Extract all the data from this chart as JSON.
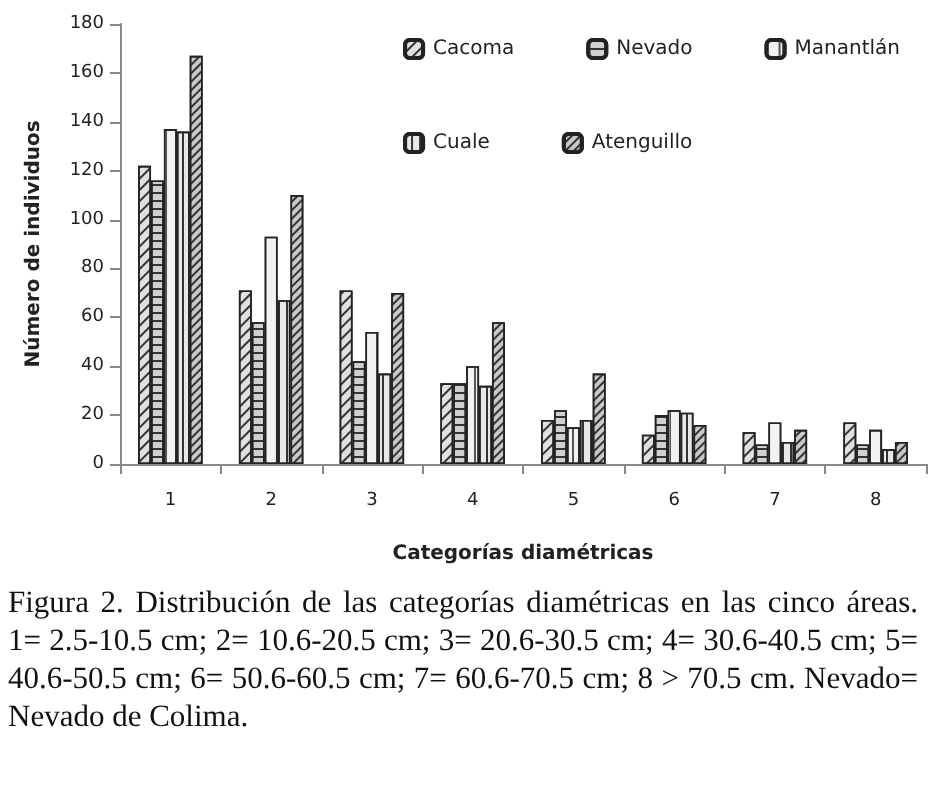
{
  "chart_data": {
    "type": "bar",
    "xlabel": "Categorías diamétricas",
    "ylabel": "Número de individuos",
    "categories": [
      "1",
      "2",
      "3",
      "4",
      "5",
      "6",
      "7",
      "8"
    ],
    "series": [
      {
        "name": "Cacoma",
        "color": "#e0e0e0",
        "values": [
          122,
          71,
          71,
          33,
          18,
          12,
          13,
          17
        ]
      },
      {
        "name": "Nevado",
        "color": "#d0d0d0",
        "values": [
          116,
          58,
          42,
          33,
          22,
          20,
          8,
          8
        ]
      },
      {
        "name": "Manantlán",
        "color": "#f2f2f2",
        "values": [
          137,
          93,
          54,
          40,
          15,
          22,
          17,
          14
        ]
      },
      {
        "name": "Cuale",
        "color": "#e8e8e8",
        "values": [
          136,
          67,
          37,
          32,
          18,
          21,
          9,
          6
        ]
      },
      {
        "name": "Atenguillo",
        "color": "#c8c8c8",
        "values": [
          167,
          110,
          70,
          58,
          37,
          16,
          14,
          9
        ]
      }
    ],
    "ylim": [
      0,
      180
    ],
    "yticks": [
      0,
      20,
      40,
      60,
      80,
      100,
      120,
      140,
      160,
      180
    ],
    "grid": false,
    "legend": "top right",
    "annotations": [
      "Figura 2. Distribución de las categorías diamétricas en las cinco áreas. 1= 2.5-10.5 cm; 2= 10.6-20.5 cm;  3= 20.6-30.5 cm; 4= 30.6-40.5 cm; 5= 40.6-50.5 cm; 6= 50.6-60.5 cm; 7= 60.6-70.5 cm; 8 > 70.5 cm. Nevado= Nevado de Colima."
    ]
  }
}
